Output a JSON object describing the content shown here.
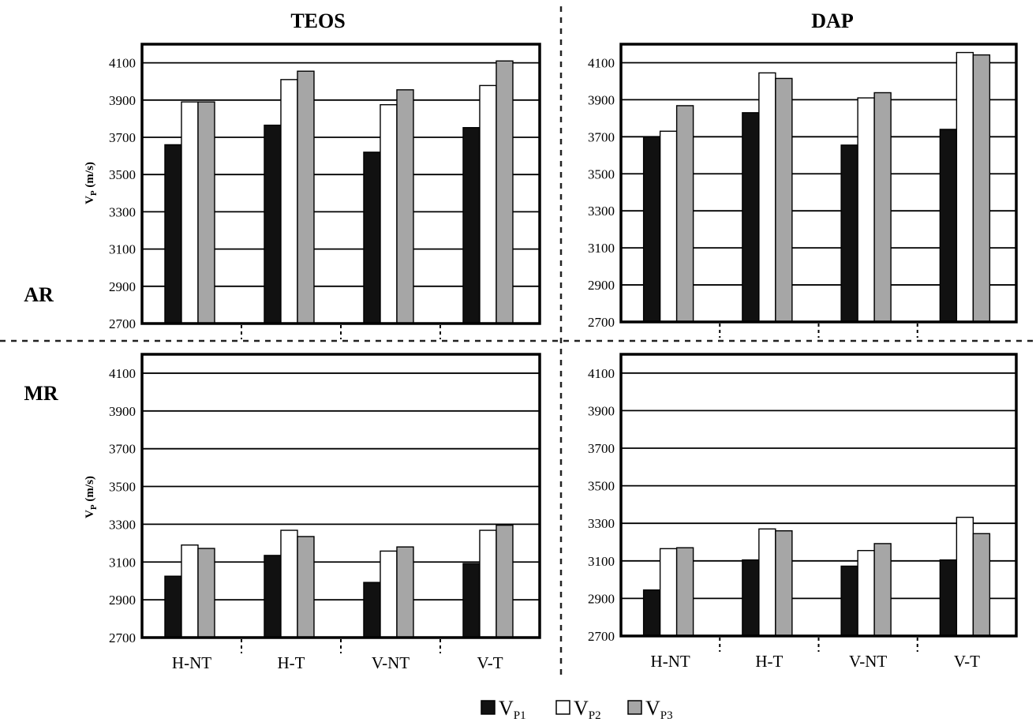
{
  "figure": {
    "column_titles": [
      "TEOS",
      "DAP"
    ],
    "row_labels": [
      "AR",
      "MR"
    ],
    "ylabel_main": "V",
    "ylabel_sub": "P",
    "ylabel_unit": " (m/s)"
  },
  "legend": [
    {
      "main": "V",
      "sub": "P1",
      "color": "#111111"
    },
    {
      "main": "V",
      "sub": "P2",
      "color": "#ffffff"
    },
    {
      "main": "V",
      "sub": "P3",
      "color": "#a6a6a6"
    }
  ],
  "chart_data": [
    {
      "type": "bar",
      "id": "teos-ar",
      "categories": [
        "H-NT",
        "H-T",
        "V-NT",
        "V-T"
      ],
      "ylim": [
        2700,
        4200
      ],
      "yticks": [
        2700,
        2900,
        3100,
        3300,
        3500,
        3700,
        3900,
        4100
      ],
      "grid": true,
      "series": [
        {
          "name": "VP1",
          "values": [
            3660,
            3765,
            3620,
            3752
          ]
        },
        {
          "name": "VP2",
          "values": [
            3890,
            4010,
            3875,
            3978
          ]
        },
        {
          "name": "VP3",
          "values": [
            3890,
            4055,
            3955,
            4110
          ]
        }
      ]
    },
    {
      "type": "bar",
      "id": "dap-ar",
      "categories": [
        "H-NT",
        "H-T",
        "V-NT",
        "V-T"
      ],
      "ylim": [
        2700,
        4200
      ],
      "yticks": [
        2700,
        2900,
        3100,
        3300,
        3500,
        3700,
        3900,
        4100
      ],
      "grid": true,
      "series": [
        {
          "name": "VP1",
          "values": [
            3700,
            3830,
            3655,
            3740
          ]
        },
        {
          "name": "VP2",
          "values": [
            3730,
            4045,
            3910,
            4155
          ]
        },
        {
          "name": "VP3",
          "values": [
            3868,
            4015,
            3938,
            4142
          ]
        }
      ]
    },
    {
      "type": "bar",
      "id": "teos-mr",
      "categories": [
        "H-NT",
        "H-T",
        "V-NT",
        "V-T"
      ],
      "ylim": [
        2700,
        4200
      ],
      "yticks": [
        2700,
        2900,
        3100,
        3300,
        3500,
        3700,
        3900,
        4100
      ],
      "grid": true,
      "series": [
        {
          "name": "VP1",
          "values": [
            3025,
            3135,
            2992,
            3092
          ]
        },
        {
          "name": "VP2",
          "values": [
            3190,
            3268,
            3158,
            3268
          ]
        },
        {
          "name": "VP3",
          "values": [
            3172,
            3235,
            3180,
            3295
          ]
        }
      ]
    },
    {
      "type": "bar",
      "id": "dap-mr",
      "categories": [
        "H-NT",
        "H-T",
        "V-NT",
        "V-T"
      ],
      "ylim": [
        2700,
        4200
      ],
      "yticks": [
        2700,
        2900,
        3100,
        3300,
        3500,
        3700,
        3900,
        4100
      ],
      "grid": true,
      "series": [
        {
          "name": "VP1",
          "values": [
            2945,
            3105,
            3072,
            3105
          ]
        },
        {
          "name": "VP2",
          "values": [
            3165,
            3270,
            3155,
            3332
          ]
        },
        {
          "name": "VP3",
          "values": [
            3170,
            3260,
            3192,
            3245
          ]
        }
      ]
    }
  ]
}
